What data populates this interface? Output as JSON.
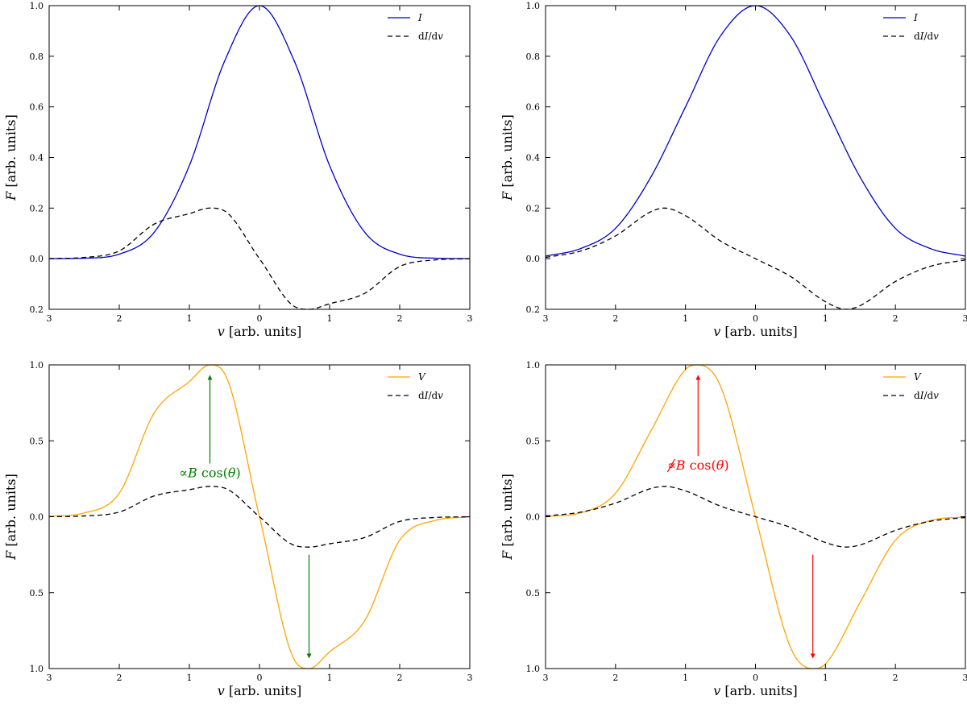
{
  "chart_data": [
    {
      "type": "line",
      "panel": "top-left",
      "xlabel": "v [arb. units]",
      "ylabel": "F [arb. units]",
      "xlim": [
        -3,
        3
      ],
      "ylim": [
        -0.2,
        1.0
      ],
      "xticks": [
        -3,
        -2,
        -1,
        0,
        1,
        2,
        3
      ],
      "xtick_labels": [
        "3",
        "2",
        "1",
        "0",
        "1",
        "2",
        "3"
      ],
      "yticks": [
        -0.2,
        0.0,
        0.2,
        0.4,
        0.6,
        0.8,
        1.0
      ],
      "ytick_labels": [
        "0.2",
        "0.0",
        "0.2",
        "0.4",
        "0.6",
        "0.8",
        "1.0"
      ],
      "legend_position": "top-right",
      "series": [
        {
          "name": "I",
          "legend": "I",
          "style": "solid",
          "color": "#0000cc",
          "x": [
            -3,
            -2.5,
            -2,
            -1.5,
            -1,
            -0.5,
            0,
            0.5,
            1,
            1.5,
            2,
            2.5,
            3
          ],
          "values": [
            0.0001,
            0.002,
            0.018,
            0.105,
            0.368,
            0.779,
            1.0,
            0.779,
            0.368,
            0.105,
            0.018,
            0.002,
            0.0001
          ]
        },
        {
          "name": "dI/dv",
          "legend": "dI/dv",
          "style": "dashed",
          "color": "#000000",
          "x": [
            -3,
            -2.5,
            -2,
            -1.5,
            -1,
            -0.707,
            -0.5,
            0,
            0.5,
            0.707,
            1,
            1.5,
            2,
            2.5,
            3
          ],
          "values": [
            0.0003,
            0.005,
            0.031,
            0.137,
            0.178,
            0.2,
            0.189,
            0.0,
            -0.189,
            -0.2,
            -0.178,
            -0.137,
            -0.031,
            -0.005,
            -0.0003
          ]
        }
      ]
    },
    {
      "type": "line",
      "panel": "top-right",
      "xlabel": "v [arb. units]",
      "ylabel": "F [arb. units]",
      "xlim": [
        -3,
        3
      ],
      "ylim": [
        -0.2,
        1.0
      ],
      "xticks": [
        -3,
        -2,
        -1,
        0,
        1,
        2,
        3
      ],
      "xtick_labels": [
        "3",
        "2",
        "1",
        "0",
        "1",
        "2",
        "3"
      ],
      "yticks": [
        -0.2,
        0.0,
        0.2,
        0.4,
        0.6,
        0.8,
        1.0
      ],
      "ytick_labels": [
        "0.2",
        "0.0",
        "0.2",
        "0.4",
        "0.6",
        "0.8",
        "1.0"
      ],
      "legend_position": "top-right",
      "series": [
        {
          "name": "I",
          "legend": "I",
          "style": "solid",
          "color": "#0000cc",
          "x": [
            -3,
            -2.5,
            -2,
            -1.5,
            -1,
            -0.5,
            0,
            0.5,
            1,
            1.5,
            2,
            2.5,
            3
          ],
          "values": [
            0.01,
            0.04,
            0.12,
            0.32,
            0.6,
            0.88,
            1.0,
            0.88,
            0.6,
            0.32,
            0.12,
            0.04,
            0.01
          ]
        },
        {
          "name": "dI/dv",
          "legend": "dI/dv",
          "style": "dashed",
          "color": "#000000",
          "x": [
            -3,
            -2.5,
            -2,
            -1.5,
            -1.3,
            -1,
            -0.5,
            0,
            0.5,
            1,
            1.3,
            1.5,
            2,
            2.5,
            3
          ],
          "values": [
            0.005,
            0.03,
            0.09,
            0.185,
            0.2,
            0.17,
            0.07,
            0.0,
            -0.07,
            -0.17,
            -0.2,
            -0.185,
            -0.09,
            -0.03,
            -0.005
          ]
        }
      ]
    },
    {
      "type": "line",
      "panel": "bottom-left",
      "xlabel": "v [arb. units]",
      "ylabel": "F [arb. units]",
      "xlim": [
        -3,
        3
      ],
      "ylim": [
        -1.0,
        1.0
      ],
      "xticks": [
        -3,
        -2,
        -1,
        0,
        1,
        2,
        3
      ],
      "xtick_labels": [
        "3",
        "2",
        "1",
        "0",
        "1",
        "2",
        "3"
      ],
      "yticks": [
        -1.0,
        -0.5,
        0.0,
        0.5,
        1.0
      ],
      "ytick_labels": [
        "1.0",
        "0.5",
        "0.0",
        "0.5",
        "1.0"
      ],
      "legend_position": "top-right",
      "annotation": {
        "text": "∝B cos(θ)",
        "color": "#008000",
        "arrows": [
          {
            "x": -0.707,
            "from": 0.35,
            "to": 0.93
          },
          {
            "x": 0.707,
            "from": -0.25,
            "to": -0.93
          }
        ]
      },
      "series": [
        {
          "name": "V",
          "legend": "V",
          "style": "solid",
          "color": "#ffa500",
          "x": [
            -3,
            -2.5,
            -2,
            -1.5,
            -1,
            -0.707,
            -0.5,
            0,
            0.5,
            0.707,
            1,
            1.5,
            2,
            2.5,
            3
          ],
          "values": [
            0.0015,
            0.025,
            0.155,
            0.685,
            0.89,
            1.0,
            0.945,
            0.0,
            -0.945,
            -1.0,
            -0.89,
            -0.685,
            -0.155,
            -0.025,
            -0.0015
          ]
        },
        {
          "name": "dI/dv",
          "legend": "dI/dv",
          "style": "dashed",
          "color": "#000000",
          "x": [
            -3,
            -2.5,
            -2,
            -1.5,
            -1,
            -0.707,
            -0.5,
            0,
            0.5,
            0.707,
            1,
            1.5,
            2,
            2.5,
            3
          ],
          "values": [
            0.0003,
            0.005,
            0.031,
            0.137,
            0.178,
            0.2,
            0.189,
            0.0,
            -0.189,
            -0.2,
            -0.178,
            -0.137,
            -0.031,
            -0.005,
            -0.0003
          ]
        }
      ]
    },
    {
      "type": "line",
      "panel": "bottom-right",
      "xlabel": "v [arb. units]",
      "ylabel": "F [arb. units]",
      "xlim": [
        -3,
        3
      ],
      "ylim": [
        -1.0,
        1.0
      ],
      "xticks": [
        -3,
        -2,
        -1,
        0,
        1,
        2,
        3
      ],
      "xtick_labels": [
        "3",
        "2",
        "1",
        "0",
        "1",
        "2",
        "3"
      ],
      "yticks": [
        -1.0,
        -0.5,
        0.0,
        0.5,
        1.0
      ],
      "ytick_labels": [
        "1.0",
        "0.5",
        "0.0",
        "0.5",
        "1.0"
      ],
      "legend_position": "top-right",
      "annotation": {
        "text": "∝B cos(θ)",
        "negated": true,
        "color": "#ff0000",
        "arrows": [
          {
            "x": -0.82,
            "from": 0.4,
            "to": 0.93
          },
          {
            "x": 0.82,
            "from": -0.25,
            "to": -0.93
          }
        ]
      },
      "series": [
        {
          "name": "V",
          "legend": "V",
          "style": "solid",
          "color": "#ffa500",
          "x": [
            -3,
            -2.5,
            -2,
            -1.5,
            -1,
            -0.82,
            -0.5,
            0,
            0.5,
            0.82,
            1,
            1.5,
            2,
            2.5,
            3
          ],
          "values": [
            0.0015,
            0.025,
            0.155,
            0.56,
            0.97,
            1.0,
            0.86,
            0.0,
            -0.86,
            -1.0,
            -0.97,
            -0.56,
            -0.155,
            -0.025,
            -0.0015
          ]
        },
        {
          "name": "dI/dv",
          "legend": "dI/dv",
          "style": "dashed",
          "color": "#000000",
          "x": [
            -3,
            -2.5,
            -2,
            -1.5,
            -1.3,
            -1,
            -0.5,
            0,
            0.5,
            1,
            1.3,
            1.5,
            2,
            2.5,
            3
          ],
          "values": [
            0.005,
            0.03,
            0.09,
            0.185,
            0.2,
            0.17,
            0.07,
            0.0,
            -0.07,
            -0.17,
            -0.2,
            -0.185,
            -0.09,
            -0.03,
            -0.005
          ]
        }
      ]
    }
  ]
}
